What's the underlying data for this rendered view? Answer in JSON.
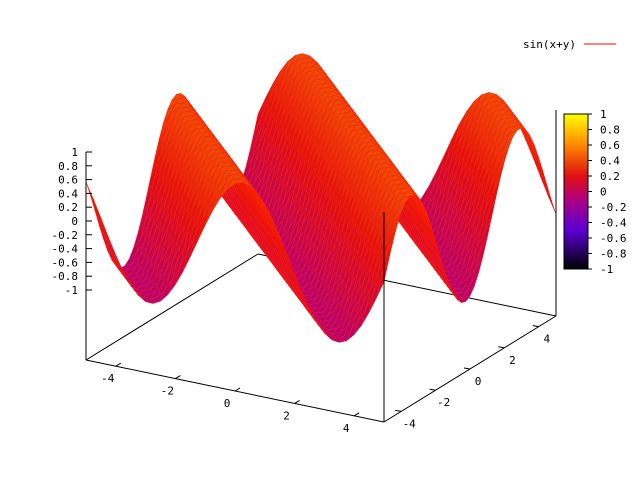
{
  "chart_data": {
    "type": "surface",
    "title": "",
    "function": "sin(x+y)",
    "series": [
      {
        "name": "sin(x+y)",
        "color": "#ff0000"
      }
    ],
    "legend": {
      "placement": "top-right"
    },
    "x_range": [
      -5,
      5
    ],
    "y_range": [
      -5,
      5
    ],
    "z_range": [
      -1,
      1
    ],
    "x_ticks": [
      "-4",
      "-2",
      "0",
      "2",
      "4"
    ],
    "y_ticks": [
      "-4",
      "-2",
      "0",
      "2",
      "4"
    ],
    "z_ticks": [
      "1",
      "0.8",
      "0.6",
      "0.4",
      "0.2",
      "0",
      "-0.2",
      "-0.4",
      "-0.6",
      "-0.8",
      "-1"
    ],
    "colorbar": {
      "range": [
        -1,
        1
      ],
      "ticks": [
        "1",
        "0.8",
        "0.6",
        "0.4",
        "0.2",
        "0",
        "-0.2",
        "-0.4",
        "-0.6",
        "-0.8",
        "-1"
      ],
      "palette": [
        "#000000",
        "#5a00d4",
        "#b00080",
        "#e01010",
        "#ff8800",
        "#ffff00"
      ]
    },
    "grid": false
  }
}
